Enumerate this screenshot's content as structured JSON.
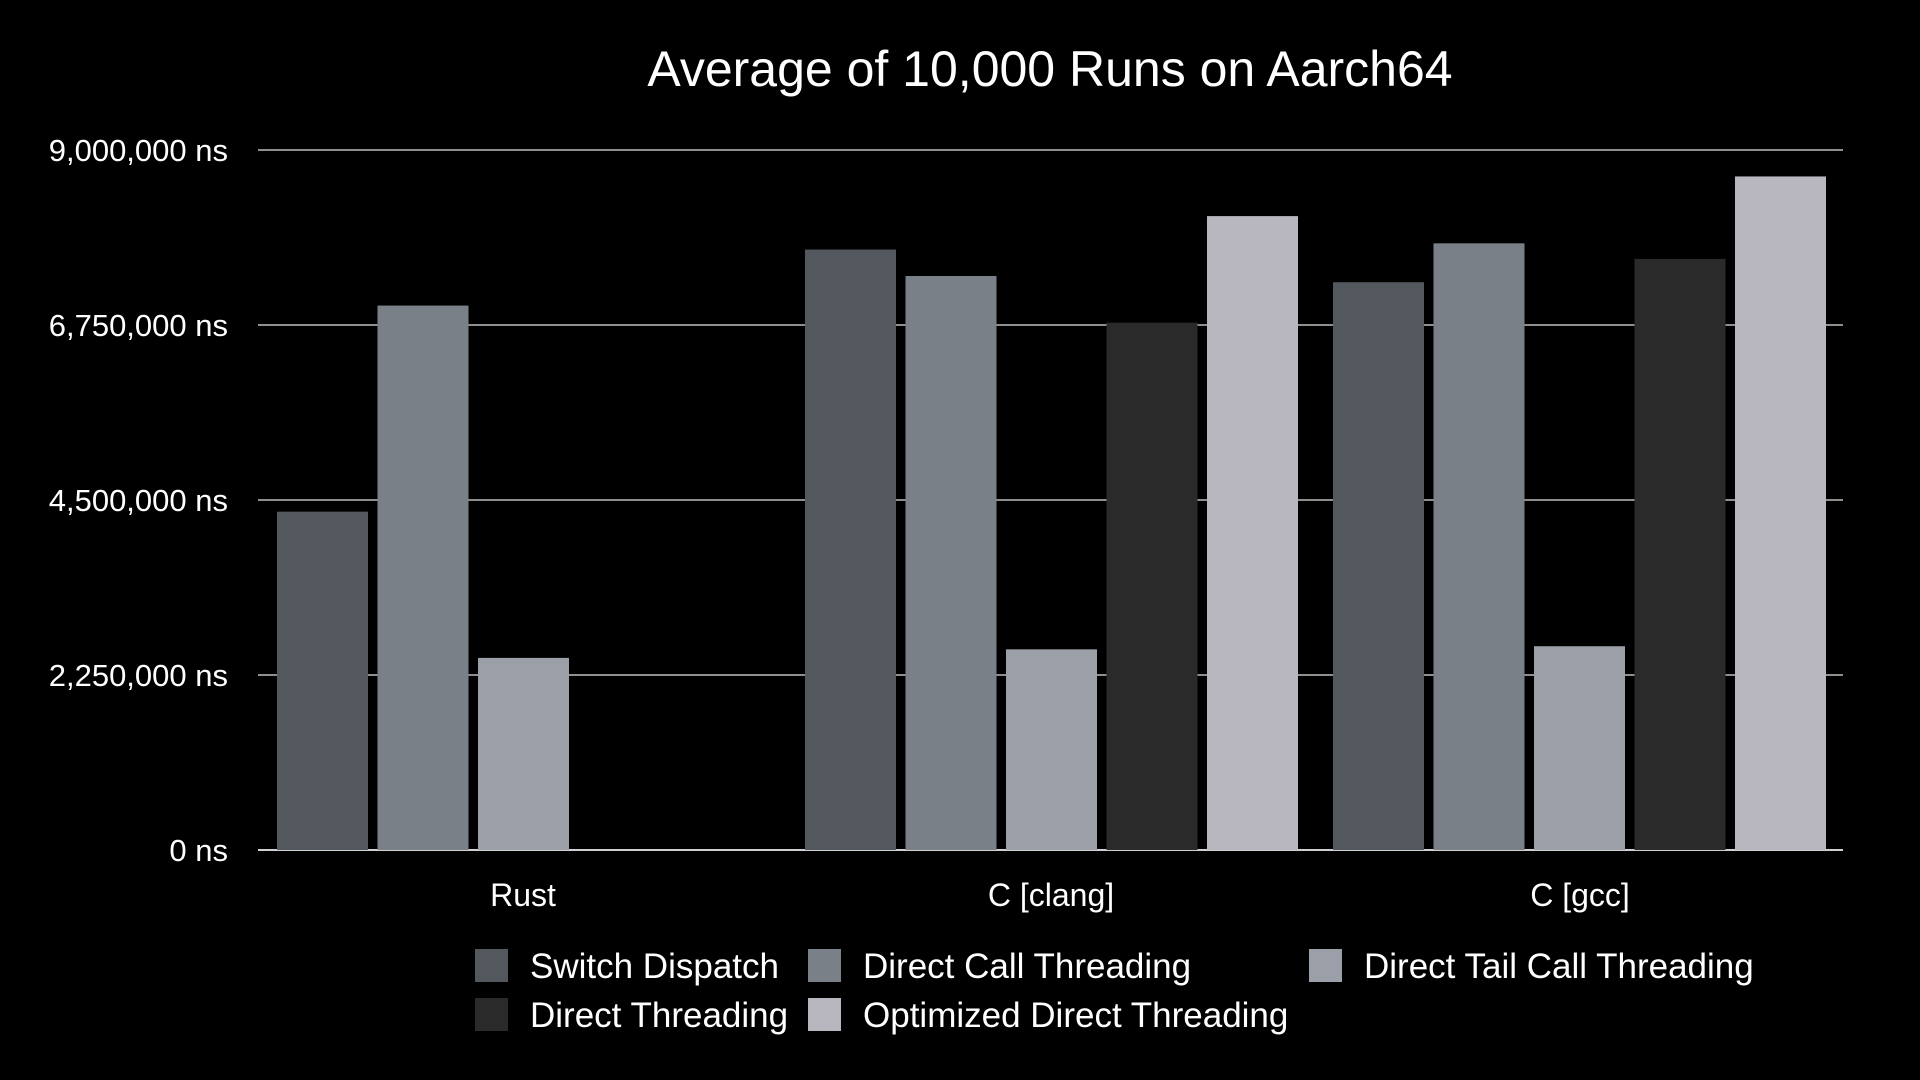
{
  "chart_data": {
    "type": "bar",
    "title": "Average of 10,000 Runs on Aarch64",
    "xlabel": "",
    "ylabel": "",
    "ylim": [
      0,
      9000000
    ],
    "yticks": [
      0,
      2250000,
      4500000,
      6750000,
      9000000
    ],
    "ytick_labels": [
      "0 ns",
      "2,250,000 ns",
      "4,500,000 ns",
      "6,750,000 ns",
      "9,000,000 ns"
    ],
    "grid": true,
    "legend_position": "bottom",
    "categories": [
      "Rust",
      "C [clang]",
      "C [gcc]"
    ],
    "series": [
      {
        "name": "Switch Dispatch",
        "color": "#53585f",
        "values": [
          4350000,
          7720000,
          7300000
        ]
      },
      {
        "name": "Direct Call Threading",
        "color": "#7a8087",
        "values": [
          7000000,
          7380000,
          7800000
        ]
      },
      {
        "name": "Direct Tail Call Threading",
        "color": "#9a9fa8",
        "values": [
          2470000,
          2580000,
          2620000
        ]
      },
      {
        "name": "Direct Threading",
        "color": "#2a2a2a",
        "values": [
          null,
          6780000,
          7600000
        ]
      },
      {
        "name": "Optimized Direct Threading",
        "color": "#b8b7c0",
        "values": [
          null,
          8150000,
          8660000
        ]
      }
    ],
    "legend_rows": [
      [
        "Switch Dispatch",
        "Direct Call Threading",
        "Direct Tail Call Threading"
      ],
      [
        "Direct Threading",
        "Optimized Direct Threading"
      ]
    ]
  }
}
